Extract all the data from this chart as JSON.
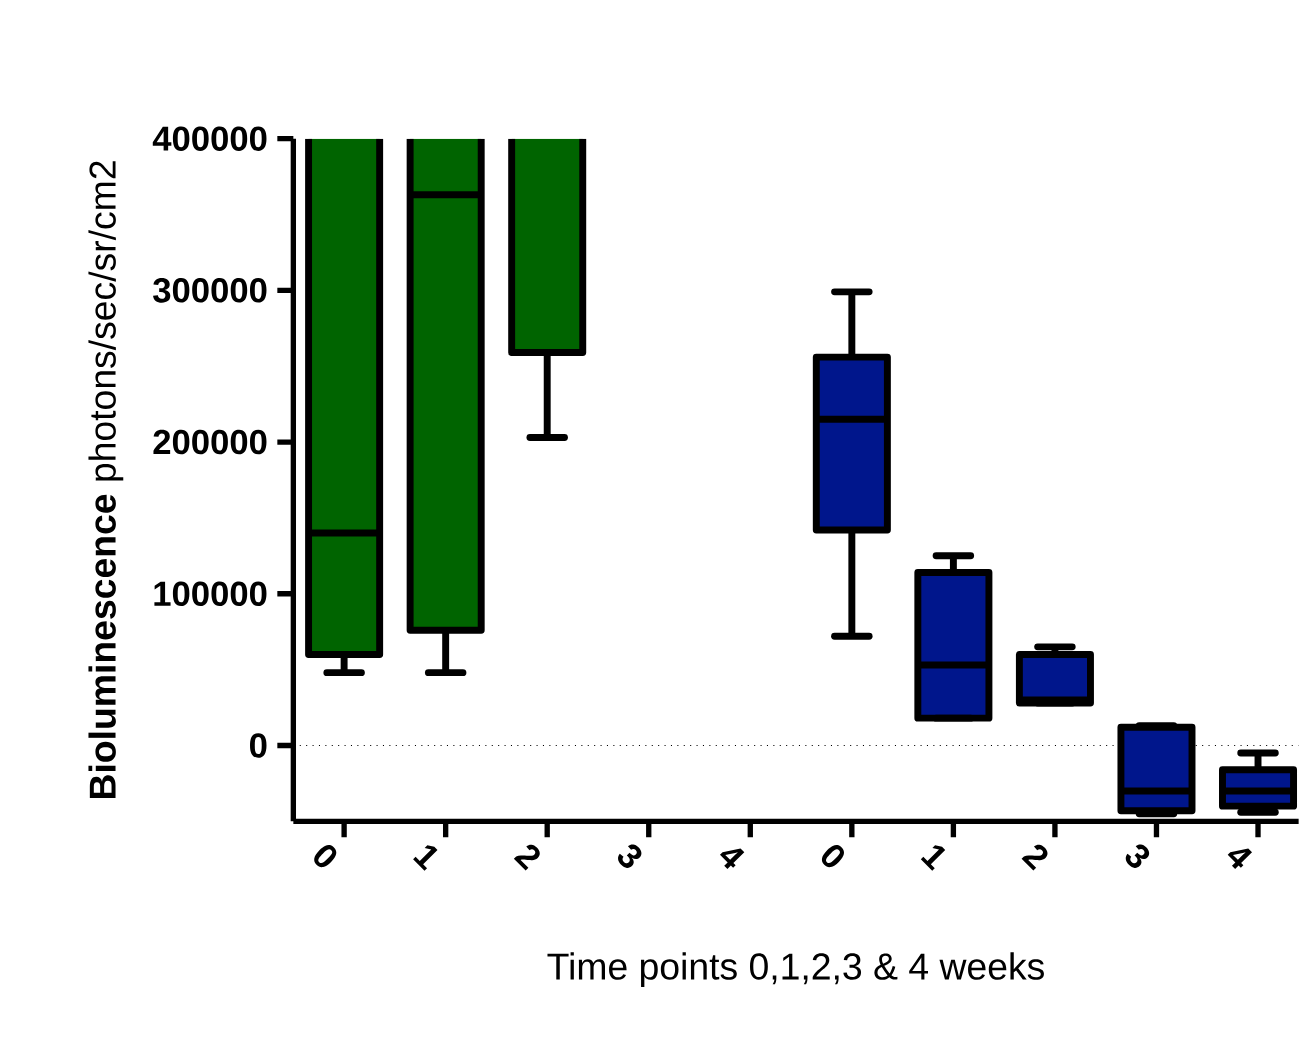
{
  "chart_data": {
    "type": "box",
    "ylabel": "**Bioluminescence** photons/sec/sr/cm2",
    "xlabel": "Time points 0,1,2,3 & 4 weeks",
    "categories": [
      "0",
      "1",
      "2",
      "3",
      "4",
      "0",
      "1",
      "2",
      "3",
      "4"
    ],
    "ylim": [
      -50000,
      400000
    ],
    "yticks": [
      0,
      100000,
      200000,
      300000,
      400000
    ],
    "ref_lines": [
      {
        "axis": "y",
        "value": 0,
        "line_style": "dotted"
      }
    ],
    "series": [
      {
        "color": "#006400",
        "boxes": [
          {
            "low": 48000,
            "q1": 60000,
            "median": 140000,
            "q3": 400000,
            "high": null
          },
          {
            "low": 48000,
            "q1": 76000,
            "median": 363000,
            "q3": 400000,
            "high": null
          },
          {
            "low": 203000,
            "q1": 259000,
            "median": null,
            "q3": 400000,
            "high": null
          },
          null,
          null,
          null,
          null,
          null,
          null,
          null
        ]
      },
      {
        "color": "#00168c",
        "boxes": [
          null,
          null,
          null,
          null,
          null,
          {
            "low": 72000,
            "q1": 142000,
            "median": 215000,
            "q3": 256000,
            "high": 299000
          },
          {
            "low": 18000,
            "q1": 18000,
            "median": 53000,
            "q3": 114000,
            "high": 125000
          },
          {
            "low": 28000,
            "q1": 28000,
            "median": 30000,
            "q3": 60000,
            "high": 65000
          },
          {
            "low": -45000,
            "q1": -43000,
            "median": -30000,
            "q3": 12000,
            "high": 13000
          },
          {
            "low": -44000,
            "q1": -40000,
            "median": -30000,
            "q3": -16000,
            "high": -5000
          }
        ]
      }
    ]
  }
}
